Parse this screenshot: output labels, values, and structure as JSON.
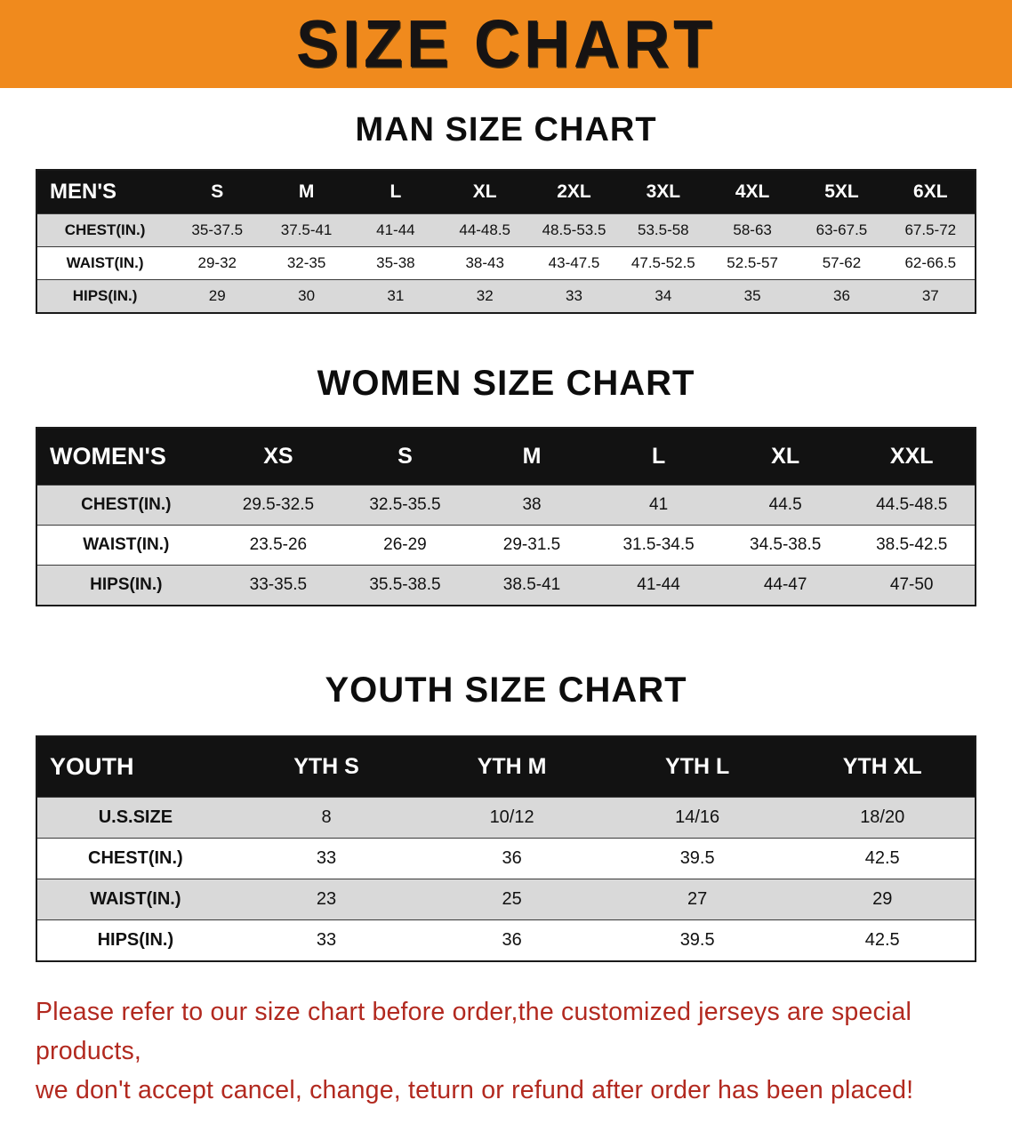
{
  "banner": {
    "title": "SIZE CHART",
    "bg_color": "#f08a1d",
    "text_color": "#161313"
  },
  "sections": [
    {
      "id": "men",
      "heading": "MAN SIZE CHART",
      "table": {
        "header": [
          "MEN'S",
          "S",
          "M",
          "L",
          "XL",
          "2XL",
          "3XL",
          "4XL",
          "5XL",
          "6XL"
        ],
        "rows": [
          [
            "CHEST(IN.)",
            "35-37.5",
            "37.5-41",
            "41-44",
            "44-48.5",
            "48.5-53.5",
            "53.5-58",
            "58-63",
            "63-67.5",
            "67.5-72"
          ],
          [
            "WAIST(IN.)",
            "29-32",
            "32-35",
            "35-38",
            "38-43",
            "43-47.5",
            "47.5-52.5",
            "52.5-57",
            "57-62",
            "62-66.5"
          ],
          [
            "HIPS(IN.)",
            "29",
            "30",
            "31",
            "32",
            "33",
            "34",
            "35",
            "36",
            "37"
          ]
        ]
      }
    },
    {
      "id": "women",
      "heading": "WOMEN SIZE CHART",
      "table": {
        "header": [
          "WOMEN'S",
          "XS",
          "S",
          "M",
          "L",
          "XL",
          "XXL"
        ],
        "rows": [
          [
            "CHEST(IN.)",
            "29.5-32.5",
            "32.5-35.5",
            "38",
            "41",
            "44.5",
            "44.5-48.5"
          ],
          [
            "WAIST(IN.)",
            "23.5-26",
            "26-29",
            "29-31.5",
            "31.5-34.5",
            "34.5-38.5",
            "38.5-42.5"
          ],
          [
            "HIPS(IN.)",
            "33-35.5",
            "35.5-38.5",
            "38.5-41",
            "41-44",
            "44-47",
            "47-50"
          ]
        ]
      }
    },
    {
      "id": "youth",
      "heading": "YOUTH SIZE CHART",
      "table": {
        "header": [
          "YOUTH",
          "YTH S",
          "YTH M",
          "YTH L",
          "YTH XL"
        ],
        "rows": [
          [
            "U.S.SIZE",
            "8",
            "10/12",
            "14/16",
            "18/20"
          ],
          [
            "CHEST(IN.)",
            "33",
            "36",
            "39.5",
            "42.5"
          ],
          [
            "WAIST(IN.)",
            "23",
            "25",
            "27",
            "29"
          ],
          [
            "HIPS(IN.)",
            "33",
            "36",
            "39.5",
            "42.5"
          ]
        ]
      }
    }
  ],
  "footer": {
    "line1": "Please refer to our size chart before order,the customized jerseys are special products,",
    "line2": "we don't accept cancel, change, teturn or refund after order has been placed!",
    "text_color": "#b2291f"
  }
}
